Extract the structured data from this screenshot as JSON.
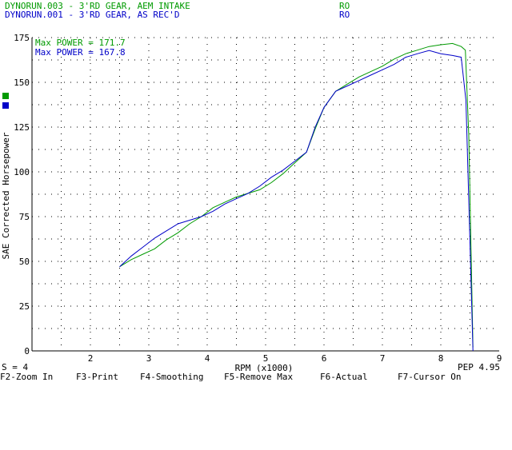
{
  "runs": [
    {
      "name": "DYNORUN.003 - 3'RD GEAR, AEM INTAKE",
      "tag": "RO",
      "color": "#009a00"
    },
    {
      "name": "DYNORUN.001 - 3'RD GEAR, AS REC'D",
      "tag": "RO",
      "color": "#0000c8"
    }
  ],
  "status": {
    "smoothing": "S = 4",
    "pep": "PEP 4.95"
  },
  "function_keys": [
    "F2-Zoom In",
    "F3-Print",
    "F4-Smoothing",
    "F5-Remove Max",
    "F6-Actual",
    "F7-Cursor On"
  ],
  "chart_data": {
    "type": "line",
    "xlabel": "RPM (x1000)",
    "ylabel": "SAE Corrected Horsepower",
    "xlim": [
      1,
      9
    ],
    "ylim": [
      0,
      175
    ],
    "x_ticks": [
      2,
      3,
      4,
      5,
      6,
      7,
      8,
      9
    ],
    "y_ticks": [
      0,
      25,
      50,
      75,
      100,
      125,
      150,
      175
    ],
    "grid": true,
    "legend_position": "top-left",
    "annotations": [
      "Max POWER = 171.7",
      "Max POWER = 167.8"
    ],
    "series": [
      {
        "name": "DYNORUN.003 - 3'RD GEAR, AEM INTAKE",
        "color": "#009a00",
        "x": [
          2.5,
          2.7,
          2.9,
          3.1,
          3.3,
          3.5,
          3.7,
          3.9,
          4.1,
          4.3,
          4.5,
          4.7,
          4.9,
          5.1,
          5.3,
          5.5,
          5.7,
          5.85,
          6.0,
          6.2,
          6.4,
          6.6,
          6.8,
          7.0,
          7.2,
          7.4,
          7.6,
          7.8,
          8.0,
          8.2,
          8.35,
          8.42,
          8.48,
          8.55
        ],
        "y": [
          47,
          51,
          54,
          57,
          62,
          66,
          71,
          75,
          80,
          83,
          86,
          88,
          90,
          94,
          99,
          105,
          111,
          124,
          136,
          145,
          149,
          153,
          156,
          159,
          163,
          166,
          168,
          170,
          171,
          171.7,
          170,
          168,
          120,
          2
        ]
      },
      {
        "name": "DYNORUN.001 - 3'RD GEAR, AS REC'D",
        "color": "#0000c8",
        "x": [
          2.5,
          2.7,
          2.9,
          3.1,
          3.3,
          3.5,
          3.7,
          3.9,
          4.1,
          4.3,
          4.5,
          4.7,
          4.9,
          5.1,
          5.3,
          5.5,
          5.7,
          5.85,
          6.0,
          6.2,
          6.4,
          6.6,
          6.8,
          7.0,
          7.2,
          7.4,
          7.6,
          7.8,
          8.0,
          8.2,
          8.35,
          8.43,
          8.5,
          8.55
        ],
        "y": [
          47,
          53,
          58,
          63,
          67,
          71,
          73,
          75,
          78,
          82,
          85,
          88,
          92,
          97,
          101,
          106,
          111,
          125,
          136,
          145,
          148,
          151,
          154,
          157,
          160,
          164,
          166,
          167.8,
          166,
          165,
          164,
          140,
          60,
          0
        ]
      }
    ]
  }
}
